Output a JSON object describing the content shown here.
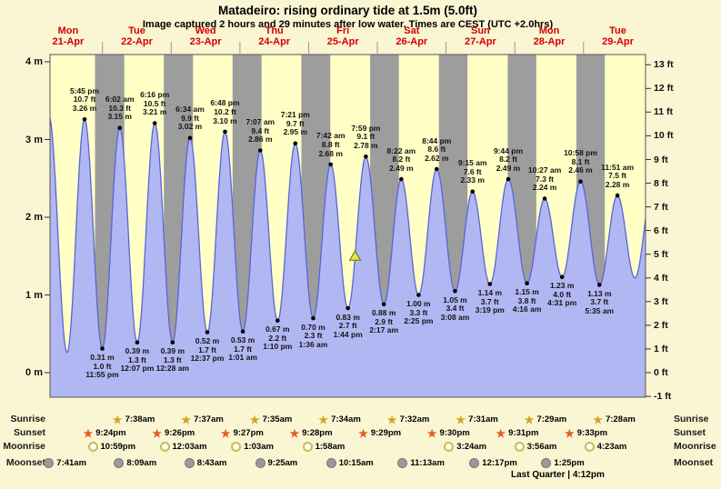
{
  "header": {
    "title": "Matadeiro: rising  ordinary tide at 1.5m (5.0ft)",
    "subtitle": "Image captured 2 hours and 29 minutes after low water. Times are CEST (UTC +2.0hrs)"
  },
  "chart_data": {
    "type": "area",
    "title": "Matadeiro: rising  ordinary tide at 1.5m (5.0ft)",
    "x_axis": "time over 9 days, night shown as gray bands",
    "days": [
      {
        "dow": "Mon",
        "date": "21-Apr"
      },
      {
        "dow": "Tue",
        "date": "22-Apr"
      },
      {
        "dow": "Wed",
        "date": "23-Apr"
      },
      {
        "dow": "Thu",
        "date": "24-Apr"
      },
      {
        "dow": "Fri",
        "date": "25-Apr"
      },
      {
        "dow": "Sat",
        "date": "26-Apr"
      },
      {
        "dow": "Sun",
        "date": "27-Apr"
      },
      {
        "dow": "Mon",
        "date": "28-Apr"
      },
      {
        "dow": "Tue",
        "date": "29-Apr"
      }
    ],
    "y_axis_left": {
      "unit": "m",
      "ticks": [
        {
          "v": 4,
          "label": "4 m"
        },
        {
          "v": 3,
          "label": "3 m"
        },
        {
          "v": 2,
          "label": "2 m"
        },
        {
          "v": 1,
          "label": "1 m"
        },
        {
          "v": 0,
          "label": "0 m"
        }
      ]
    },
    "y_axis_right": {
      "unit": "ft",
      "ticks": [
        {
          "v": 13,
          "label": "13 ft"
        },
        {
          "v": 12,
          "label": "12 ft"
        },
        {
          "v": 11,
          "label": "11 ft"
        },
        {
          "v": 10,
          "label": "10 ft"
        },
        {
          "v": 9,
          "label": "9 ft"
        },
        {
          "v": 8,
          "label": "8 ft"
        },
        {
          "v": 7,
          "label": "7 ft"
        },
        {
          "v": 6,
          "label": "6 ft"
        },
        {
          "v": 5,
          "label": "5 ft"
        },
        {
          "v": 4,
          "label": "4 ft"
        },
        {
          "v": 3,
          "label": "3 ft"
        },
        {
          "v": 2,
          "label": "2 ft"
        },
        {
          "v": 1,
          "label": "1 ft"
        },
        {
          "v": 0,
          "label": "0 ft"
        },
        {
          "v": -1,
          "label": "-1 ft"
        }
      ]
    },
    "tide_events": [
      {
        "day": 0,
        "time": "5:45 pm",
        "type": "high",
        "m": 3.26,
        "ft": "10.7 ft",
        "m_label": "3.26 m"
      },
      {
        "day": 0,
        "time": "11:55 pm",
        "type": "low",
        "m": 0.31,
        "ft": "1.0 ft",
        "m_label": "0.31 m"
      },
      {
        "day": 1,
        "time": "6:02 am",
        "type": "high",
        "m": 3.15,
        "ft": "10.3 ft",
        "m_label": "3.15 m"
      },
      {
        "day": 1,
        "time": "12:07 pm",
        "type": "low",
        "m": 0.39,
        "ft": "1.3 ft",
        "m_label": "0.39 m"
      },
      {
        "day": 1,
        "time": "6:16 pm",
        "type": "high",
        "m": 3.21,
        "ft": "10.5 ft",
        "m_label": "3.21 m"
      },
      {
        "day": 2,
        "time": "12:28 am",
        "type": "low",
        "m": 0.39,
        "ft": "1.3 ft",
        "m_label": "0.39 m"
      },
      {
        "day": 2,
        "time": "6:34 am",
        "type": "high",
        "m": 3.02,
        "ft": "9.9 ft",
        "m_label": "3.02 m"
      },
      {
        "day": 2,
        "time": "12:37 pm",
        "type": "low",
        "m": 0.52,
        "ft": "1.7 ft",
        "m_label": "0.52 m"
      },
      {
        "day": 2,
        "time": "6:48 pm",
        "type": "high",
        "m": 3.1,
        "ft": "10.2 ft",
        "m_label": "3.10 m"
      },
      {
        "day": 3,
        "time": "1:01 am",
        "type": "low",
        "m": 0.53,
        "ft": "1.7 ft",
        "m_label": "0.53 m"
      },
      {
        "day": 3,
        "time": "7:07 am",
        "type": "high",
        "m": 2.86,
        "ft": "9.4 ft",
        "m_label": "2.86 m"
      },
      {
        "day": 3,
        "time": "1:10 pm",
        "type": "low",
        "m": 0.67,
        "ft": "2.2 ft",
        "m_label": "0.67 m"
      },
      {
        "day": 3,
        "time": "7:21 pm",
        "type": "high",
        "m": 2.95,
        "ft": "9.7 ft",
        "m_label": "2.95 m"
      },
      {
        "day": 4,
        "time": "1:36 am",
        "type": "low",
        "m": 0.7,
        "ft": "2.3 ft",
        "m_label": "0.70 m"
      },
      {
        "day": 4,
        "time": "7:42 am",
        "type": "high",
        "m": 2.68,
        "ft": "8.8 ft",
        "m_label": "2.68 m"
      },
      {
        "day": 4,
        "time": "1:44 pm",
        "type": "low",
        "m": 0.83,
        "ft": "2.7 ft",
        "m_label": "0.83 m"
      },
      {
        "day": 4,
        "time": "7:59 pm",
        "type": "high",
        "m": 2.78,
        "ft": "9.1 ft",
        "m_label": "2.78 m"
      },
      {
        "day": 5,
        "time": "2:17 am",
        "type": "low",
        "m": 0.88,
        "ft": "2.9 ft",
        "m_label": "0.88 m"
      },
      {
        "day": 5,
        "time": "8:22 am",
        "type": "high",
        "m": 2.49,
        "ft": "8.2 ft",
        "m_label": "2.49 m"
      },
      {
        "day": 5,
        "time": "2:25 pm",
        "type": "low",
        "m": 1.0,
        "ft": "3.3 ft",
        "m_label": "1.00 m"
      },
      {
        "day": 5,
        "time": "8:44 pm",
        "type": "high",
        "m": 2.62,
        "ft": "8.6 ft",
        "m_label": "2.62 m"
      },
      {
        "day": 6,
        "time": "3:08 am",
        "type": "low",
        "m": 1.05,
        "ft": "3.4 ft",
        "m_label": "1.05 m"
      },
      {
        "day": 6,
        "time": "9:15 am",
        "type": "high",
        "m": 2.33,
        "ft": "7.6 ft",
        "m_label": "2.33 m"
      },
      {
        "day": 6,
        "time": "3:19 pm",
        "type": "low",
        "m": 1.14,
        "ft": "3.7 ft",
        "m_label": "1.14 m"
      },
      {
        "day": 6,
        "time": "9:44 pm",
        "type": "high",
        "m": 2.49,
        "ft": "8.2 ft",
        "m_label": "2.49 m"
      },
      {
        "day": 7,
        "time": "4:16 am",
        "type": "low",
        "m": 1.15,
        "ft": "3.8 ft",
        "m_label": "1.15 m"
      },
      {
        "day": 7,
        "time": "10:27 am",
        "type": "high",
        "m": 2.24,
        "ft": "7.3 ft",
        "m_label": "2.24 m"
      },
      {
        "day": 7,
        "time": "4:31 pm",
        "type": "low",
        "m": 1.23,
        "ft": "4.0 ft",
        "m_label": "1.23 m"
      },
      {
        "day": 7,
        "time": "10:58 pm",
        "type": "high",
        "m": 2.46,
        "ft": "8.1 ft",
        "m_label": "2.46 m"
      },
      {
        "day": 8,
        "time": "5:35 am",
        "type": "low",
        "m": 1.13,
        "ft": "3.7 ft",
        "m_label": "1.13 m"
      },
      {
        "day": 8,
        "time": "11:51 am",
        "type": "high",
        "m": 2.28,
        "ft": "7.5 ft",
        "m_label": "2.28 m"
      }
    ],
    "curve_guard_points": [
      {
        "day": 0,
        "time": "5:18 am",
        "m": 3.3
      },
      {
        "day": 0,
        "time": "11:37 am",
        "m": 0.26
      },
      {
        "day": 8,
        "time": "5:57 pm",
        "m": 1.22
      },
      {
        "day": 9,
        "time": "12:18 am",
        "m": 2.42
      }
    ],
    "current_level_marker": {
      "day": 4,
      "time": "4:13 pm",
      "m": 1.5
    }
  },
  "astro": {
    "rows": [
      {
        "id": "sunrise",
        "label": "Sunrise",
        "icon": "sunrise-star-icon",
        "items": [
          {
            "day": 1,
            "time": "7:38am"
          },
          {
            "day": 2,
            "time": "7:37am"
          },
          {
            "day": 3,
            "time": "7:35am"
          },
          {
            "day": 4,
            "time": "7:34am"
          },
          {
            "day": 5,
            "time": "7:32am"
          },
          {
            "day": 6,
            "time": "7:31am"
          },
          {
            "day": 7,
            "time": "7:29am"
          },
          {
            "day": 8,
            "time": "7:28am"
          }
        ]
      },
      {
        "id": "sunset",
        "label": "Sunset",
        "icon": "sunset-star-icon",
        "items": [
          {
            "day": 0,
            "time": "9:24pm"
          },
          {
            "day": 1,
            "time": "9:26pm"
          },
          {
            "day": 2,
            "time": "9:27pm"
          },
          {
            "day": 3,
            "time": "9:28pm"
          },
          {
            "day": 4,
            "time": "9:29pm"
          },
          {
            "day": 5,
            "time": "9:30pm"
          },
          {
            "day": 6,
            "time": "9:31pm"
          },
          {
            "day": 7,
            "time": "9:33pm"
          }
        ]
      },
      {
        "id": "moonrise",
        "label": "Moonrise",
        "icon": "moonrise-circle-icon",
        "items": [
          {
            "day": 0,
            "time": "10:59pm"
          },
          {
            "day": 2,
            "time": "12:03am"
          },
          {
            "day": 3,
            "time": "1:03am"
          },
          {
            "day": 4,
            "time": "1:58am"
          },
          {
            "day": 6,
            "time": "3:24am"
          },
          {
            "day": 7,
            "time": "3:56am"
          },
          {
            "day": 8,
            "time": "4:23am"
          }
        ]
      },
      {
        "id": "moonset",
        "label": "Moonset",
        "icon": "moonset-circle-icon",
        "items": [
          {
            "day": 0,
            "time": "7:41am"
          },
          {
            "day": 1,
            "time": "8:09am"
          },
          {
            "day": 2,
            "time": "8:43am"
          },
          {
            "day": 3,
            "time": "9:25am"
          },
          {
            "day": 4,
            "time": "10:15am"
          },
          {
            "day": 5,
            "time": "11:13am"
          },
          {
            "day": 6,
            "time": "12:17pm"
          },
          {
            "day": 7,
            "time": "1:25pm"
          }
        ]
      }
    ],
    "moon_phase": "Last Quarter | 4:12pm"
  },
  "colors": {
    "page_bg": "#faf5d2",
    "plot_bg": "#ffffc6",
    "night_band": "#9d9d9d",
    "tide_fill": "#b1b7f2",
    "tide_line": "#5a64d8",
    "marker_fill": "#ece23f",
    "marker_stroke": "#6b6b1c",
    "day_label": "#d40000",
    "sunrise_star": "#d2a51d",
    "sunset_star": "#e25b1e",
    "moonrise_ring": "#c9bc55",
    "moonset_fill": "#9a9a9a"
  }
}
